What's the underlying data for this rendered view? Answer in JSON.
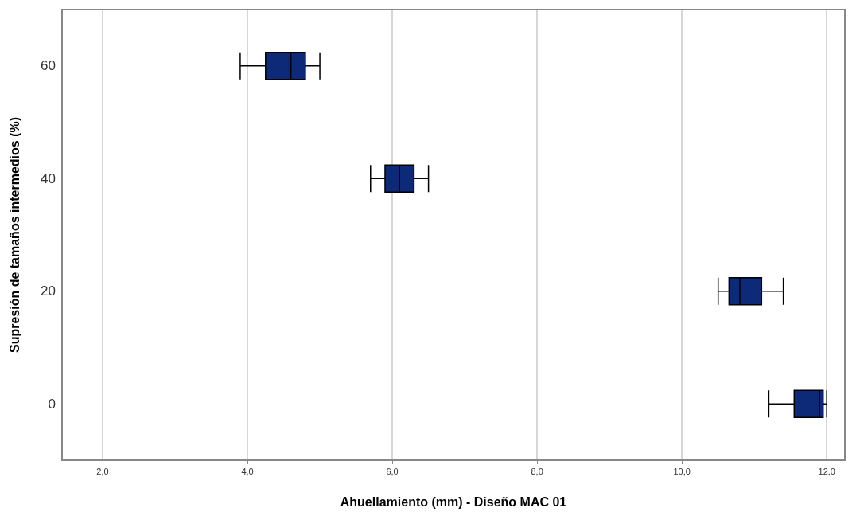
{
  "chart_data": {
    "type": "box",
    "orientation": "horizontal",
    "xlabel": "Ahuellamiento (mm) - Diseño MAC 01",
    "ylabel": "Supresión de tamaños intermedios (%)",
    "categories": [
      "60",
      "40",
      "20",
      "0"
    ],
    "boxes": [
      {
        "low": 3.9,
        "q1": 4.25,
        "median": 4.6,
        "q3": 4.8,
        "high": 5.0
      },
      {
        "low": 5.7,
        "q1": 5.9,
        "median": 6.1,
        "q3": 6.3,
        "high": 6.5
      },
      {
        "low": 10.5,
        "q1": 10.65,
        "median": 10.8,
        "q3": 11.1,
        "high": 11.4
      },
      {
        "low": 11.2,
        "q1": 11.55,
        "median": 11.9,
        "q3": 11.95,
        "high": 12.0
      }
    ],
    "color": "#0c2a78",
    "xlim": [
      1.44,
      12.25
    ],
    "xticks": [
      {
        "value": 2,
        "label": "2,0"
      },
      {
        "value": 4,
        "label": "4,0"
      },
      {
        "value": 6,
        "label": "6,0"
      },
      {
        "value": 8,
        "label": "8,0"
      },
      {
        "value": 10,
        "label": "10,0"
      },
      {
        "value": 12,
        "label": "12,0"
      }
    ],
    "grid": "x"
  }
}
